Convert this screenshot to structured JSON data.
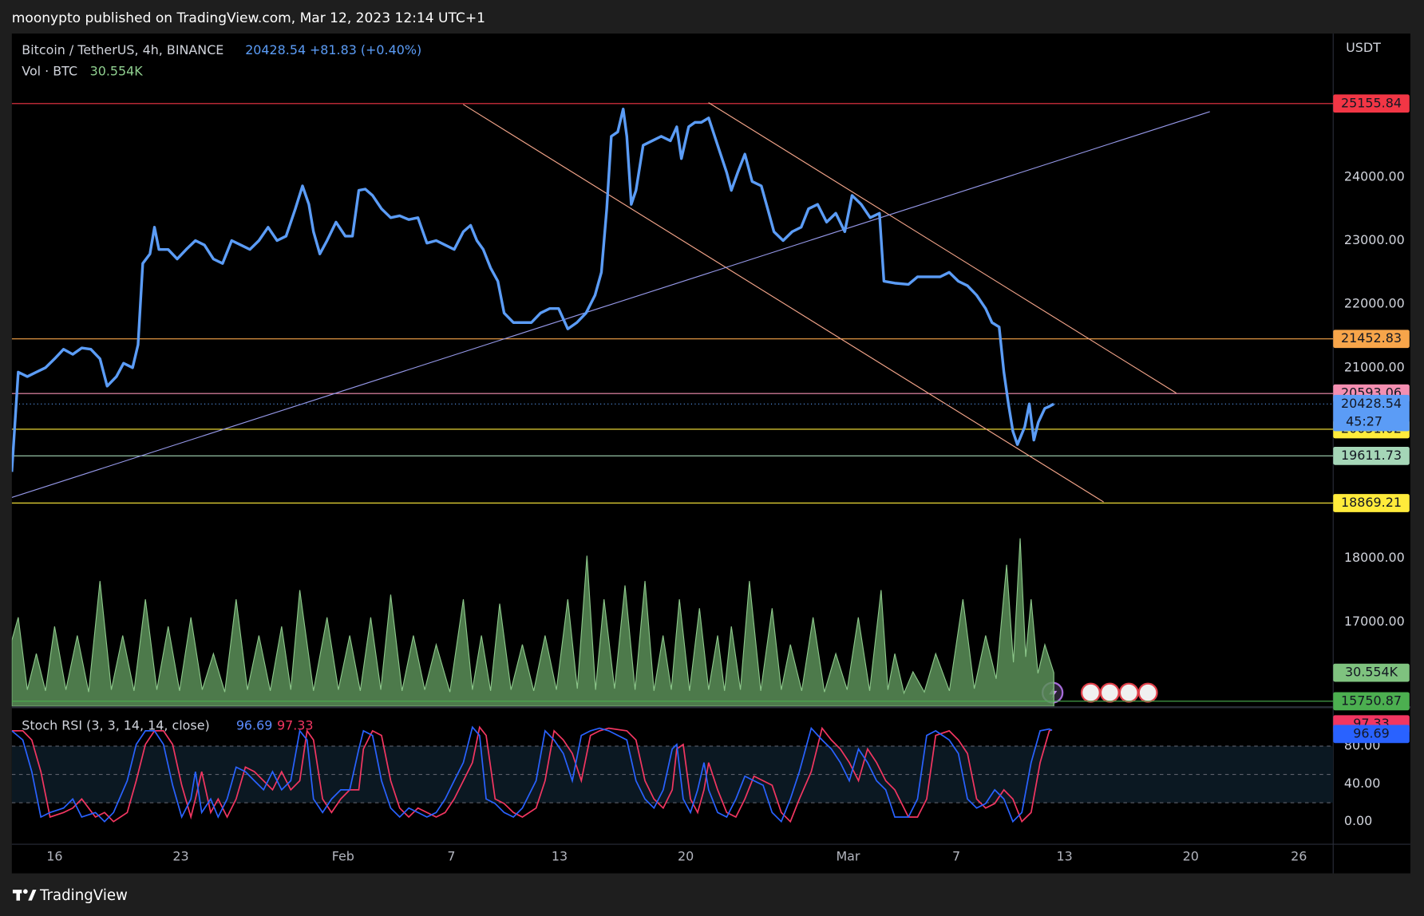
{
  "header": {
    "publisher": "moonypto published on TradingView.com, Mar 12, 2023 12:14 UTC+1"
  },
  "footer": {
    "brand": "TradingView"
  },
  "chart_data": [
    {
      "type": "line",
      "title": "Bitcoin / TetherUS, 4h, BINANCE",
      "change": "+81.83 (+0.40%)",
      "axis_unit": "USDT",
      "countdown": "45:27",
      "color": "#5b9cf6",
      "xlim": [
        13.63,
        86.9
      ],
      "xticks": [
        16,
        23,
        {
          "value": 32,
          "label": "Feb"
        },
        {
          "value": 38,
          "label": "7"
        },
        {
          "value": 44,
          "label": "13"
        },
        {
          "value": 51,
          "label": "20"
        },
        {
          "value": 60,
          "label": "Mar"
        },
        {
          "value": 66,
          "label": "7"
        },
        {
          "value": 72,
          "label": "13"
        },
        {
          "value": 79,
          "label": "20"
        },
        {
          "value": 85,
          "label": "26"
        }
      ],
      "ylim": [
        15671,
        26257
      ],
      "yticks": [
        {
          "value": 17000,
          "label": "17000.00"
        },
        {
          "value": 18000,
          "label": "18000.00"
        },
        {
          "value": 21000,
          "label": "21000.00"
        },
        {
          "value": 22000,
          "label": "22000.00"
        },
        {
          "value": 23000,
          "label": "23000.00"
        },
        {
          "value": 24000,
          "label": "24000.00"
        }
      ],
      "x": [
        13.63,
        13.99,
        14.49,
        14.99,
        15.5,
        16.0,
        16.5,
        17.01,
        17.51,
        18.01,
        18.52,
        18.92,
        19.43,
        19.83,
        20.33,
        20.63,
        20.89,
        21.29,
        21.54,
        21.79,
        22.3,
        22.8,
        23.3,
        23.81,
        24.31,
        24.81,
        25.32,
        25.82,
        26.33,
        26.83,
        27.33,
        27.84,
        28.34,
        28.84,
        29.35,
        29.75,
        30.1,
        30.36,
        30.71,
        31.11,
        31.61,
        32.12,
        32.52,
        32.87,
        33.23,
        33.63,
        34.13,
        34.64,
        35.14,
        35.64,
        36.15,
        36.65,
        37.16,
        37.66,
        38.16,
        38.67,
        39.07,
        39.42,
        39.77,
        40.18,
        40.58,
        40.93,
        41.44,
        41.94,
        42.44,
        42.95,
        43.45,
        43.95,
        44.46,
        44.96,
        45.47,
        45.97,
        46.32,
        46.62,
        46.87,
        47.23,
        47.53,
        47.73,
        47.98,
        48.24,
        48.64,
        49.14,
        49.64,
        50.15,
        50.5,
        50.76,
        51.16,
        51.51,
        51.86,
        52.27,
        52.77,
        53.27,
        53.53,
        53.88,
        54.28,
        54.68,
        55.19,
        55.54,
        55.89,
        56.4,
        56.9,
        57.4,
        57.81,
        58.31,
        58.81,
        59.32,
        59.82,
        60.22,
        60.73,
        61.23,
        61.74,
        61.99,
        62.59,
        63.35,
        63.85,
        64.61,
        65.11,
        65.61,
        66.12,
        66.62,
        67.13,
        67.63,
        67.98,
        68.38,
        68.64,
        68.89,
        69.14,
        69.39,
        69.8,
        70.05,
        70.3,
        70.55,
        70.91,
        71.16,
        71.41
      ],
      "values": [
        19360,
        20930,
        20860,
        20930,
        21000,
        21140,
        21290,
        21210,
        21310,
        21290,
        21140,
        20710,
        20860,
        21070,
        21000,
        21360,
        22640,
        22790,
        23210,
        22860,
        22860,
        22710,
        22860,
        23000,
        22930,
        22710,
        22640,
        23000,
        22930,
        22860,
        23000,
        23210,
        23000,
        23070,
        23500,
        23860,
        23570,
        23140,
        22790,
        23000,
        23290,
        23070,
        23070,
        23790,
        23810,
        23710,
        23500,
        23360,
        23390,
        23330,
        23360,
        22960,
        23000,
        22930,
        22860,
        23140,
        23240,
        23000,
        22860,
        22570,
        22360,
        21860,
        21710,
        21710,
        21710,
        21860,
        21930,
        21930,
        21610,
        21710,
        21860,
        22140,
        22500,
        23500,
        24640,
        24710,
        25070,
        24640,
        23570,
        23790,
        24500,
        24570,
        24640,
        24570,
        24790,
        24290,
        24790,
        24860,
        24860,
        24930,
        24500,
        24070,
        23790,
        24070,
        24360,
        23930,
        23860,
        23500,
        23140,
        23000,
        23140,
        23210,
        23500,
        23570,
        23290,
        23430,
        23140,
        23710,
        23570,
        23360,
        23430,
        22360,
        22330,
        22310,
        22430,
        22430,
        22430,
        22500,
        22360,
        22290,
        22140,
        21930,
        21710,
        21640,
        20930,
        20430,
        20000,
        19790,
        20070,
        20430,
        19860,
        20140,
        20360,
        20390,
        20428.54
      ],
      "levels": [
        {
          "value": 25155.84,
          "color": "#f23645"
        },
        {
          "value": 21452.83,
          "color": "#f7a54a"
        },
        {
          "value": 20593.06,
          "color": "#f48fb1"
        },
        {
          "value": 20031.02,
          "color": "#ffeb3b"
        },
        {
          "value": 19611.73,
          "color": "#a5d6b7"
        },
        {
          "value": 18869.21,
          "color": "#ffeb3b"
        },
        {
          "value": 15750.87,
          "color": "#4caf50"
        }
      ],
      "trendlines": [
        {
          "x": [
            38.66,
            74.17
          ],
          "values": [
            25143,
            18886
          ],
          "color": "#f4a58a"
        },
        {
          "x": [
            52.26,
            78.2
          ],
          "values": [
            25171,
            20600
          ],
          "color": "#f4a58a"
        },
        {
          "x": [
            13.63,
            80.06
          ],
          "values": [
            18957,
            25029
          ],
          "color": "#9598e8"
        }
      ]
    },
    {
      "type": "area",
      "title": "Vol · BTC",
      "last_label": "30.554K",
      "color": "#5b8f58",
      "ylim": [
        0,
        612000
      ],
      "x": [
        13.63,
        13.99,
        14.49,
        14.99,
        15.5,
        16.0,
        16.63,
        17.26,
        17.89,
        18.52,
        19.15,
        19.78,
        20.41,
        21.04,
        21.67,
        22.3,
        22.93,
        23.56,
        24.19,
        24.81,
        25.44,
        26.07,
        26.7,
        27.33,
        27.96,
        28.59,
        29.1,
        29.6,
        30.36,
        31.11,
        31.74,
        32.37,
        32.95,
        33.53,
        34.09,
        34.64,
        35.27,
        35.9,
        36.53,
        37.16,
        37.92,
        38.67,
        39.17,
        39.67,
        40.18,
        40.68,
        41.31,
        41.94,
        42.57,
        43.2,
        43.83,
        44.46,
        44.99,
        45.52,
        46.0,
        46.47,
        47.05,
        47.63,
        48.19,
        48.74,
        49.24,
        49.74,
        50.2,
        50.65,
        51.21,
        51.76,
        52.27,
        52.77,
        53.15,
        53.53,
        54.03,
        54.53,
        55.16,
        55.79,
        56.3,
        56.8,
        57.43,
        58.06,
        58.69,
        59.32,
        59.95,
        60.57,
        61.2,
        61.83,
        62.21,
        62.59,
        63.1,
        63.6,
        64.23,
        64.86,
        65.62,
        66.37,
        67.0,
        67.63,
        68.21,
        68.79,
        69.17,
        69.54,
        69.85,
        70.15,
        70.53,
        70.91,
        71.41
      ],
      "values": [
        60000,
        80900,
        15000,
        47900,
        14000,
        72700,
        15000,
        64400,
        13000,
        114000,
        15000,
        64400,
        14000,
        97400,
        15000,
        72700,
        14000,
        80900,
        15000,
        47900,
        13000,
        97400,
        15000,
        64400,
        14000,
        72700,
        15000,
        105700,
        14000,
        80900,
        15000,
        64400,
        14000,
        80900,
        15000,
        101600,
        14000,
        64400,
        15000,
        56200,
        13000,
        97400,
        15000,
        64400,
        14000,
        93300,
        15000,
        56200,
        14000,
        64400,
        15000,
        97400,
        16000,
        137000,
        15000,
        97400,
        16000,
        110000,
        15000,
        114000,
        14000,
        64400,
        15000,
        97400,
        14000,
        89200,
        15000,
        64400,
        14000,
        72700,
        15000,
        114000,
        14000,
        89200,
        15000,
        56200,
        14000,
        80900,
        13000,
        47900,
        15000,
        80900,
        14000,
        105700,
        15000,
        47900,
        12000,
        31400,
        13000,
        47900,
        14000,
        97400,
        16000,
        64400,
        25000,
        128800,
        40000,
        152800,
        45000,
        97400,
        30000,
        56200,
        30554
      ]
    },
    {
      "type": "line",
      "title": "Stoch RSI (3, 3, 14, 14, close)",
      "ylim": [
        -24,
        120.2
      ],
      "yticks": [
        {
          "value": 0,
          "label": "0.00"
        },
        {
          "value": 40,
          "label": "40.00"
        },
        {
          "value": 80,
          "label": "80.00"
        }
      ],
      "band": [
        20,
        80
      ],
      "levels": [
        20,
        50,
        80
      ],
      "x": [
        13.63,
        14.24,
        14.74,
        15.24,
        15.75,
        16.5,
        17.01,
        17.51,
        18.27,
        18.77,
        19.27,
        20.03,
        20.53,
        21.04,
        21.54,
        22.04,
        22.55,
        23.05,
        23.56,
        23.81,
        24.16,
        24.66,
        25.07,
        25.57,
        26.07,
        26.58,
        27.08,
        27.59,
        28.09,
        28.59,
        29.1,
        29.6,
        30.0,
        30.36,
        30.86,
        31.36,
        31.87,
        32.37,
        32.87,
        33.13,
        33.63,
        34.13,
        34.64,
        35.14,
        35.64,
        36.15,
        36.65,
        37.16,
        37.66,
        38.16,
        38.67,
        39.17,
        39.57,
        39.93,
        40.43,
        40.93,
        41.44,
        41.94,
        42.7,
        43.2,
        43.7,
        44.21,
        44.71,
        45.21,
        45.72,
        46.22,
        46.73,
        47.73,
        48.24,
        48.74,
        49.24,
        49.75,
        50.25,
        50.5,
        50.86,
        51.26,
        51.66,
        52.01,
        52.27,
        52.77,
        53.27,
        53.78,
        54.28,
        54.78,
        55.29,
        55.79,
        56.3,
        56.8,
        57.3,
        57.96,
        58.56,
        59.07,
        59.57,
        60.07,
        60.58,
        61.08,
        61.58,
        62.09,
        62.59,
        63.35,
        63.85,
        64.36,
        64.86,
        65.61,
        66.12,
        66.62,
        67.13,
        67.63,
        68.13,
        68.64,
        69.14,
        69.64,
        70.15,
        70.65,
        71.16,
        71.31
      ],
      "series": [
        {
          "color": "#2962ff",
          "values": [
            96.2,
            86.5,
            52.9,
            4.8,
            9.6,
            14.4,
            24,
            4.8,
            9.6,
            0,
            9.6,
            43.3,
            81.7,
            96.2,
            96.2,
            81.7,
            38.5,
            4.8,
            24,
            52.9,
            9.6,
            24,
            4.8,
            24,
            57.7,
            52.9,
            43.3,
            33.7,
            52.9,
            33.7,
            43.3,
            96.2,
            86.5,
            24,
            9.6,
            24,
            33.7,
            33.7,
            76.9,
            96.2,
            91.3,
            43.3,
            14.4,
            4.8,
            14.4,
            9.6,
            4.8,
            9.6,
            24,
            43.3,
            62.5,
            100,
            91.3,
            24,
            19.2,
            9.6,
            4.8,
            14.4,
            43.3,
            96.2,
            86.5,
            72.1,
            43.3,
            91.3,
            96.2,
            99,
            96.2,
            86.5,
            43.3,
            24,
            14.4,
            33.7,
            76.9,
            81.7,
            24,
            9.6,
            33.7,
            62.5,
            33.7,
            9.6,
            4.8,
            24,
            48.1,
            43.3,
            38.5,
            9.6,
            0,
            24,
            52.9,
            99,
            86.5,
            76.9,
            62.5,
            43.3,
            76.9,
            62.5,
            43.3,
            33.7,
            4.8,
            4.8,
            24,
            91.3,
            96.2,
            86.5,
            72.1,
            24,
            14.4,
            19.2,
            33.7,
            24,
            0,
            9.6,
            62.5,
            96.2,
            98.1,
            96.69
          ]
        },
        {
          "color": "#f23661",
          "values": [
            96.2,
            96.2,
            86.5,
            52.9,
            4.8,
            9.6,
            14.4,
            24,
            4.8,
            9.6,
            0,
            9.6,
            43.3,
            81.7,
            96.2,
            96.2,
            81.7,
            38.5,
            4.8,
            24,
            52.9,
            9.6,
            24,
            4.8,
            24,
            57.7,
            52.9,
            43.3,
            33.7,
            52.9,
            33.7,
            43.3,
            96.2,
            86.5,
            24,
            9.6,
            24,
            33.7,
            33.7,
            76.9,
            96.2,
            91.3,
            43.3,
            14.4,
            4.8,
            14.4,
            9.6,
            4.8,
            9.6,
            24,
            43.3,
            62.5,
            100,
            91.3,
            24,
            19.2,
            9.6,
            4.8,
            14.4,
            43.3,
            96.2,
            86.5,
            72.1,
            43.3,
            91.3,
            96.2,
            99,
            96.2,
            86.5,
            43.3,
            24,
            14.4,
            33.7,
            76.9,
            81.7,
            24,
            9.6,
            33.7,
            62.5,
            33.7,
            9.6,
            4.8,
            24,
            48.1,
            43.3,
            38.5,
            9.6,
            0,
            24,
            52.9,
            99,
            86.5,
            76.9,
            62.5,
            43.3,
            76.9,
            62.5,
            43.3,
            33.7,
            4.8,
            4.8,
            24,
            91.3,
            96.2,
            86.5,
            72.1,
            24,
            14.4,
            19.2,
            33.7,
            24,
            0,
            9.6,
            62.5,
            96.2,
            97.33
          ]
        }
      ]
    }
  ]
}
